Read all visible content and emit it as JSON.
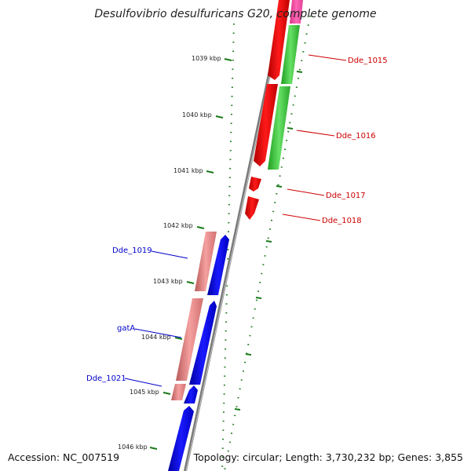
{
  "title": "Desulfovibrio desulfuricans G20, complete genome",
  "footer": {
    "accession": "Accession: NC_007519",
    "topology": "Topology: circular; Length: 3,730,232 bp; Genes: 3,855"
  },
  "colors": {
    "forward_cds": "#ff0000",
    "forward_cds_alt": "#33cc33",
    "forward_rna": "#ff3399",
    "reverse_cds": "#0000ee",
    "reverse_cds_alt": "#f08080",
    "backbone": "#888888",
    "tick": "#1a7a1a",
    "forward_label": "#cc0000",
    "reverse_label": "#0000cc"
  },
  "ticks": [
    {
      "label": "1039 kbp"
    },
    {
      "label": "1040 kbp"
    },
    {
      "label": "1041 kbp"
    },
    {
      "label": "1042 kbp"
    },
    {
      "label": "1043 kbp"
    },
    {
      "label": "1044 kbp"
    },
    {
      "label": "1045 kbp"
    },
    {
      "label": "1046 kbp"
    }
  ],
  "gene_labels": [
    {
      "name": "Dde_1015",
      "strand": "forward"
    },
    {
      "name": "Dde_1016",
      "strand": "forward"
    },
    {
      "name": "Dde_1017",
      "strand": "forward"
    },
    {
      "name": "Dde_1018",
      "strand": "forward"
    },
    {
      "name": "Dde_1019",
      "strand": "reverse"
    },
    {
      "name": "gatA",
      "strand": "reverse"
    },
    {
      "name": "Dde_1021",
      "strand": "reverse"
    }
  ]
}
